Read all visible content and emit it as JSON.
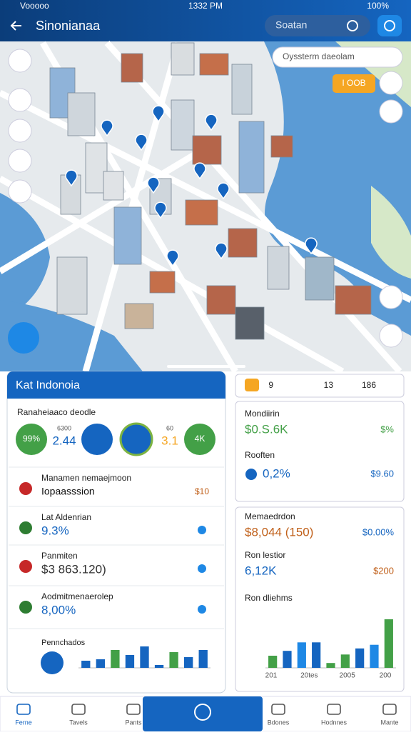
{
  "status": {
    "carrier": "Vooooo",
    "time": "1332 PM",
    "battery": "100%"
  },
  "header": {
    "title": "Sinonianaa",
    "search": "Soatan"
  },
  "map": {
    "search": "Oyssterm daeolam",
    "button": "I OOB"
  },
  "left_panel": {
    "title": "Kat Indonoia",
    "summary_title": "Ranaheiaaco deodle",
    "stats": [
      {
        "label": "99%"
      },
      {
        "label": "2.44",
        "sub": "6300"
      },
      {
        "label": "3.1",
        "sub": "60"
      },
      {
        "label": "4K"
      }
    ],
    "rows": [
      {
        "title": "Manamen nemaejmoon",
        "value": "Iopaasssion",
        "extra": "$10"
      },
      {
        "title": "Lat Aldenrian",
        "value": "9.3%"
      },
      {
        "title": "Panmiten",
        "value": "$3 863.120)"
      },
      {
        "title": "Aodmitmenaerolep",
        "value": "8,00%"
      }
    ],
    "chart": {
      "type": "bar",
      "title": "Pennchados",
      "values": [
        10,
        12,
        25,
        18,
        30,
        4,
        22,
        15,
        25
      ],
      "colors": [
        "#1565c0",
        "#1565c0",
        "#43a047",
        "#1565c0",
        "#1565c0",
        "#1565c0",
        "#43a047",
        "#1565c0",
        "#1565c0"
      ],
      "ylim": [
        0,
        40
      ]
    }
  },
  "right_panel": {
    "toolbar": [
      "9",
      "13",
      "186"
    ],
    "cards": [
      {
        "title": "Mondiirin",
        "value": "$0.S.6K",
        "extra": "$%"
      },
      {
        "title": "Rooften",
        "value": "0,2%",
        "extra": "$9.60"
      },
      {
        "title": "Memaedrdon",
        "value": "$8,044 (150)",
        "extra": "$0.00%"
      },
      {
        "title": "Ron lestior",
        "value": "6,12K",
        "extra": "$200"
      }
    ],
    "chart": {
      "type": "bar",
      "title": "Ron dliehms",
      "values": [
        20,
        28,
        42,
        42,
        8,
        22,
        32,
        38,
        80
      ],
      "colors": [
        "#43a047",
        "#1565c0",
        "#1e88e5",
        "#1565c0",
        "#43a047",
        "#43a047",
        "#1565c0",
        "#1e88e5",
        "#43a047"
      ],
      "ylim": [
        0,
        100
      ],
      "xlabels": [
        "201",
        "20tes",
        "2005",
        "200"
      ]
    }
  },
  "nav": [
    "Ferne",
    "Tavels",
    "Pants",
    "Bdones",
    "Hodnnes",
    "Mante"
  ]
}
